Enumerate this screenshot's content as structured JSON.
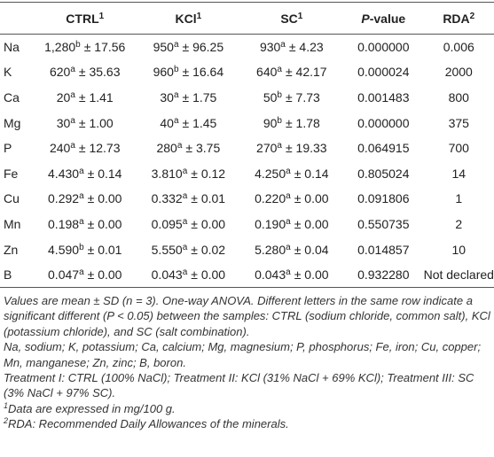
{
  "table": {
    "header": [
      {
        "text": "CTRL",
        "sup": "1"
      },
      {
        "text": "KCl",
        "sup": "1"
      },
      {
        "text": "SC",
        "sup": "1"
      },
      {
        "italic": "P",
        "text": "-value"
      },
      {
        "text": "RDA",
        "sup": "2"
      }
    ],
    "rows": [
      {
        "label": "Na",
        "cells": [
          {
            "value": "1,280",
            "sup": "b",
            "sd": "± 17.56"
          },
          {
            "value": "950",
            "sup": "a",
            "sd": "± 96.25"
          },
          {
            "value": "930",
            "sup": "a",
            "sd": "± 4.23"
          }
        ],
        "p_value": "0.000000",
        "rda": "0.006"
      },
      {
        "label": "K",
        "cells": [
          {
            "value": "620",
            "sup": "a",
            "sd": "± 35.63"
          },
          {
            "value": "960",
            "sup": "b",
            "sd": "± 16.64"
          },
          {
            "value": "640",
            "sup": "a",
            "sd": "± 42.17"
          }
        ],
        "p_value": "0.000024",
        "rda": "2000"
      },
      {
        "label": "Ca",
        "cells": [
          {
            "value": "20",
            "sup": "a",
            "sd": "± 1.41"
          },
          {
            "value": "30",
            "sup": "a",
            "sd": "± 1.75"
          },
          {
            "value": "50",
            "sup": "b",
            "sd": "± 7.73"
          }
        ],
        "p_value": "0.001483",
        "rda": "800"
      },
      {
        "label": "Mg",
        "cells": [
          {
            "value": "30",
            "sup": "a",
            "sd": "± 1.00"
          },
          {
            "value": "40",
            "sup": "a",
            "sd": "± 1.45"
          },
          {
            "value": "90",
            "sup": "b",
            "sd": "± 1.78"
          }
        ],
        "p_value": "0.000000",
        "rda": "375"
      },
      {
        "label": "P",
        "cells": [
          {
            "value": "240",
            "sup": "a",
            "sd": "± 12.73"
          },
          {
            "value": "280",
            "sup": "a",
            "sd": "± 3.75"
          },
          {
            "value": "270",
            "sup": "a",
            "sd": "± 19.33"
          }
        ],
        "p_value": "0.064915",
        "rda": "700"
      },
      {
        "label": "Fe",
        "cells": [
          {
            "value": "4.430",
            "sup": "a",
            "sd": "± 0.14"
          },
          {
            "value": "3.810",
            "sup": "a",
            "sd": "± 0.12"
          },
          {
            "value": "4.250",
            "sup": "a",
            "sd": "± 0.14"
          }
        ],
        "p_value": "0.805024",
        "rda": "14"
      },
      {
        "label": "Cu",
        "cells": [
          {
            "value": "0.292",
            "sup": "a",
            "sd": "± 0.00"
          },
          {
            "value": "0.332",
            "sup": "a",
            "sd": "± 0.01"
          },
          {
            "value": "0.220",
            "sup": "a",
            "sd": "± 0.00"
          }
        ],
        "p_value": "0.091806",
        "rda": "1"
      },
      {
        "label": "Mn",
        "cells": [
          {
            "value": "0.198",
            "sup": "a",
            "sd": "± 0.00"
          },
          {
            "value": "0.095",
            "sup": "a",
            "sd": "± 0.00"
          },
          {
            "value": "0.190",
            "sup": "a",
            "sd": "± 0.00"
          }
        ],
        "p_value": "0.550735",
        "rda": "2"
      },
      {
        "label": "Zn",
        "cells": [
          {
            "value": "4.590",
            "sup": "b",
            "sd": "± 0.01"
          },
          {
            "value": "5.550",
            "sup": "a",
            "sd": "± 0.02"
          },
          {
            "value": "5.280",
            "sup": "a",
            "sd": "± 0.04"
          }
        ],
        "p_value": "0.014857",
        "rda": "10"
      },
      {
        "label": "B",
        "cells": [
          {
            "value": "0.047",
            "sup": "a",
            "sd": "± 0.00"
          },
          {
            "value": "0.043",
            "sup": "a",
            "sd": "± 0.00"
          },
          {
            "value": "0.043",
            "sup": "a",
            "sd": "± 0.00"
          }
        ],
        "p_value": "0.932280",
        "rda": "Not declared"
      }
    ]
  },
  "notes": [
    "Values are mean ± SD (n = 3). One-way ANOVA. Different letters in the same row indicate a significant different (P < 0.05) between the samples: CTRL (sodium chloride, common salt), KCl (potassium chloride), and SC (salt combination).",
    "Na, sodium; K, potassium; Ca, calcium; Mg, magnesium; P, phosphorus; Fe, iron; Cu, copper; Mn, manganese; Zn, zinc; B, boron.",
    "Treatment I: CTRL (100% NaCl); Treatment II: KCl (31% NaCl + 69% KCl); Treatment III: SC (3% NaCl + 97% SC)."
  ],
  "footnotes": [
    {
      "mark": "1",
      "text": "Data are expressed in mg/100 g."
    },
    {
      "mark": "2",
      "text": "RDA: Recommended Daily Allowances of the minerals."
    }
  ]
}
